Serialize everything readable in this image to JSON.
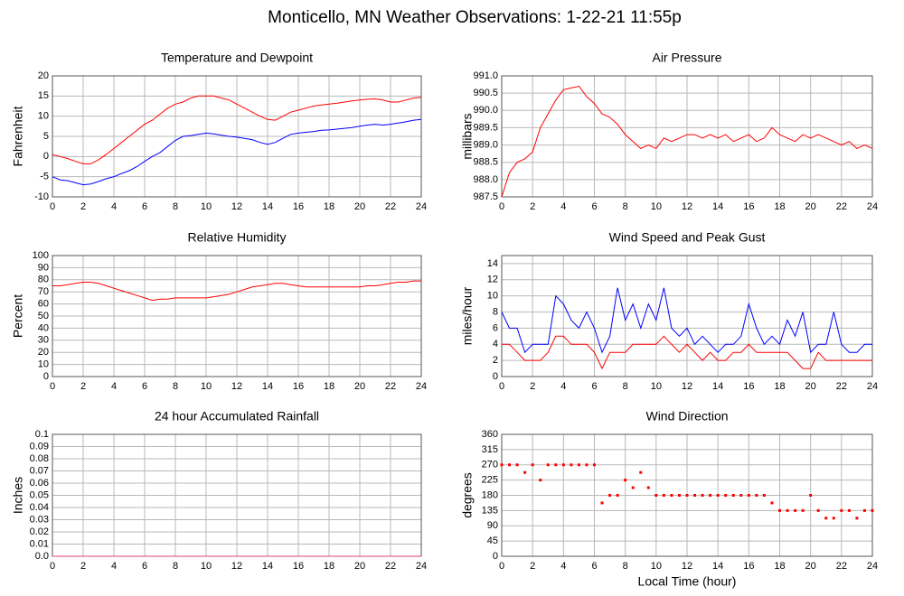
{
  "title": "Monticello, MN Weather Observations: 1-22-21 11:55p",
  "chart_data": [
    {
      "type": "line",
      "title": "Temperature and Dewpoint",
      "ylabel": "Fahrenheit",
      "x": [
        0,
        0.5,
        1,
        1.5,
        2,
        2.5,
        3,
        3.5,
        4,
        4.5,
        5,
        5.5,
        6,
        6.5,
        7,
        7.5,
        8,
        8.5,
        9,
        9.5,
        10,
        10.5,
        11,
        11.5,
        12,
        12.5,
        13,
        13.5,
        14,
        14.5,
        15,
        15.5,
        16,
        16.5,
        17,
        17.5,
        18,
        18.5,
        19,
        19.5,
        20,
        20.5,
        21,
        21.5,
        22,
        22.5,
        23,
        23.5,
        24
      ],
      "series": [
        {
          "color": "#ff0000",
          "values": [
            0.5,
            0,
            -0.5,
            -1.2,
            -1.8,
            -1.8,
            -0.8,
            0.5,
            2,
            3.5,
            5,
            6.5,
            8,
            9,
            10.5,
            12,
            13,
            13.5,
            14.5,
            15,
            15,
            15,
            14.5,
            14,
            13,
            12,
            11,
            10,
            9.2,
            9,
            10,
            11,
            11.5,
            12,
            12.5,
            12.8,
            13,
            13.2,
            13.5,
            13.8,
            14,
            14.2,
            14.3,
            14,
            13.5,
            13.5,
            14,
            14.5,
            14.7
          ]
        },
        {
          "color": "#0000ff",
          "values": [
            -5,
            -5.8,
            -6,
            -6.5,
            -7,
            -6.8,
            -6.2,
            -5.5,
            -5,
            -4.2,
            -3.5,
            -2.5,
            -1.2,
            0,
            1,
            2.5,
            4,
            5,
            5.2,
            5.5,
            5.8,
            5.6,
            5.3,
            5,
            4.8,
            4.5,
            4.2,
            3.5,
            3,
            3.5,
            4.5,
            5.5,
            5.8,
            6,
            6.2,
            6.5,
            6.6,
            6.8,
            7,
            7.2,
            7.5,
            7.8,
            8,
            7.8,
            8,
            8.3,
            8.6,
            9,
            9.2
          ]
        }
      ],
      "xlim": [
        0,
        24
      ],
      "xticks": [
        0,
        2,
        4,
        6,
        8,
        10,
        12,
        14,
        16,
        18,
        20,
        22,
        24
      ],
      "ylim": [
        -10,
        20
      ],
      "yticks": [
        -10,
        -5,
        0,
        5,
        10,
        15,
        20
      ],
      "grid": true
    },
    {
      "type": "line",
      "title": "Air Pressure",
      "ylabel": "millibars",
      "x": [
        0,
        0.5,
        1,
        1.5,
        2,
        2.5,
        3,
        3.5,
        4,
        4.5,
        5,
        5.5,
        6,
        6.5,
        7,
        7.5,
        8,
        8.5,
        9,
        9.5,
        10,
        10.5,
        11,
        11.5,
        12,
        12.5,
        13,
        13.5,
        14,
        14.5,
        15,
        15.5,
        16,
        16.5,
        17,
        17.5,
        18,
        18.5,
        19,
        19.5,
        20,
        20.5,
        21,
        21.5,
        22,
        22.5,
        23,
        23.5,
        24
      ],
      "series": [
        {
          "color": "#ff0000",
          "values": [
            987.5,
            988.2,
            988.5,
            988.6,
            988.8,
            989.5,
            989.9,
            990.3,
            990.6,
            990.65,
            990.7,
            990.4,
            990.2,
            989.9,
            989.8,
            989.6,
            989.3,
            989.1,
            988.9,
            989.0,
            988.9,
            989.2,
            989.1,
            989.2,
            989.3,
            989.3,
            989.2,
            989.3,
            989.2,
            989.3,
            989.1,
            989.2,
            989.3,
            989.1,
            989.2,
            989.5,
            989.3,
            989.2,
            989.1,
            989.3,
            989.2,
            989.3,
            989.2,
            989.1,
            989.0,
            989.1,
            988.9,
            989.0,
            988.9
          ]
        }
      ],
      "xlim": [
        0,
        24
      ],
      "xticks": [
        0,
        2,
        4,
        6,
        8,
        10,
        12,
        14,
        16,
        18,
        20,
        22,
        24
      ],
      "ylim": [
        987.5,
        991
      ],
      "yticks": [
        987.5,
        {
          "value": 988,
          "label": "988.0"
        },
        988.5,
        {
          "value": 989,
          "label": "989.0"
        },
        989.5,
        {
          "value": 990,
          "label": "990.0"
        },
        990.5,
        {
          "value": 991,
          "label": "991.0"
        }
      ],
      "grid": true
    },
    {
      "type": "line",
      "title": "Relative Humidity",
      "ylabel": "Percent",
      "x": [
        0,
        0.5,
        1,
        1.5,
        2,
        2.5,
        3,
        3.5,
        4,
        4.5,
        5,
        5.5,
        6,
        6.5,
        7,
        7.5,
        8,
        8.5,
        9,
        9.5,
        10,
        10.5,
        11,
        11.5,
        12,
        12.5,
        13,
        13.5,
        14,
        14.5,
        15,
        15.5,
        16,
        16.5,
        17,
        17.5,
        18,
        18.5,
        19,
        19.5,
        20,
        20.5,
        21,
        21.5,
        22,
        22.5,
        23,
        23.5,
        24
      ],
      "series": [
        {
          "color": "#ff0000",
          "values": [
            75,
            75,
            76,
            77,
            78,
            78,
            77,
            75,
            73,
            71,
            69,
            67,
            65,
            63,
            64,
            64,
            65,
            65,
            65,
            65,
            65,
            66,
            67,
            68,
            70,
            72,
            74,
            75,
            76,
            77,
            77,
            76,
            75,
            74,
            74,
            74,
            74,
            74,
            74,
            74,
            74,
            75,
            75,
            76,
            77,
            78,
            78,
            79,
            79
          ]
        }
      ],
      "xlim": [
        0,
        24
      ],
      "xticks": [
        0,
        2,
        4,
        6,
        8,
        10,
        12,
        14,
        16,
        18,
        20,
        22,
        24
      ],
      "ylim": [
        0,
        100
      ],
      "yticks": [
        0,
        10,
        20,
        30,
        40,
        50,
        60,
        70,
        80,
        90,
        100
      ],
      "grid": true
    },
    {
      "type": "line",
      "title": "Wind Speed and Peak Gust",
      "ylabel": "miles/hour",
      "x": [
        0,
        0.5,
        1,
        1.5,
        2,
        2.5,
        3,
        3.5,
        4,
        4.5,
        5,
        5.5,
        6,
        6.5,
        7,
        7.5,
        8,
        8.5,
        9,
        9.5,
        10,
        10.5,
        11,
        11.5,
        12,
        12.5,
        13,
        13.5,
        14,
        14.5,
        15,
        15.5,
        16,
        16.5,
        17,
        17.5,
        18,
        18.5,
        19,
        19.5,
        20,
        20.5,
        21,
        21.5,
        22,
        22.5,
        23,
        23.5,
        24
      ],
      "series": [
        {
          "color": "#0000ff",
          "values": [
            8,
            6,
            6,
            3,
            4,
            4,
            4,
            10,
            9,
            7,
            6,
            8,
            6,
            3,
            5,
            11,
            7,
            9,
            6,
            9,
            7,
            11,
            6,
            5,
            6,
            4,
            5,
            4,
            3,
            4,
            4,
            5,
            9,
            6,
            4,
            5,
            4,
            7,
            5,
            8,
            3,
            4,
            4,
            8,
            4,
            3,
            3,
            4,
            4
          ]
        },
        {
          "color": "#ff0000",
          "values": [
            4,
            4,
            3,
            2,
            2,
            2,
            3,
            5,
            5,
            4,
            4,
            4,
            3,
            1,
            3,
            3,
            3,
            4,
            4,
            4,
            4,
            5,
            4,
            3,
            4,
            3,
            2,
            3,
            2,
            2,
            3,
            3,
            4,
            3,
            3,
            3,
            3,
            3,
            2,
            1,
            1,
            3,
            2,
            2,
            2,
            2,
            2,
            2,
            2
          ]
        }
      ],
      "xlim": [
        0,
        24
      ],
      "xticks": [
        0,
        2,
        4,
        6,
        8,
        10,
        12,
        14,
        16,
        18,
        20,
        22,
        24
      ],
      "ylim": [
        0,
        15
      ],
      "yticks": [
        0,
        2,
        4,
        6,
        8,
        10,
        12,
        14
      ],
      "grid": true
    },
    {
      "type": "line",
      "title": "24 hour Accumulated Rainfall",
      "ylabel": "Inches",
      "x": [
        0,
        24
      ],
      "series": [
        {
          "color": "#e0406a",
          "values": [
            0,
            0
          ]
        }
      ],
      "xlim": [
        0,
        24
      ],
      "xticks": [
        0,
        2,
        4,
        6,
        8,
        10,
        12,
        14,
        16,
        18,
        20,
        22,
        24
      ],
      "ylim": [
        0,
        0.1
      ],
      "yticks": [
        {
          "value": 0,
          "label": "0.0"
        },
        0.01,
        0.02,
        0.03,
        0.04,
        0.05,
        0.06,
        0.07,
        0.08,
        0.09,
        0.1
      ],
      "grid": true
    },
    {
      "type": "scatter",
      "title": "Wind Direction",
      "ylabel": "degrees",
      "xlabel": "Local Time (hour)",
      "x": [
        0,
        0.5,
        1,
        1.5,
        2,
        2.5,
        3,
        3.5,
        4,
        4.5,
        5,
        5.5,
        6,
        6.5,
        7,
        7.5,
        8,
        8.5,
        9,
        9.5,
        10,
        10.5,
        11,
        11.5,
        12,
        12.5,
        13,
        13.5,
        14,
        14.5,
        15,
        15.5,
        16,
        16.5,
        17,
        17.5,
        18,
        18.5,
        19,
        19.5,
        20,
        20.5,
        21,
        21.5,
        22,
        22.5,
        23,
        23.5,
        24
      ],
      "series": [
        {
          "color": "#ff0000",
          "values": [
            270,
            270,
            270,
            247.5,
            270,
            225,
            270,
            270,
            270,
            270,
            270,
            270,
            270,
            157.5,
            180,
            180,
            225,
            202.5,
            247.5,
            202.5,
            180,
            180,
            180,
            180,
            180,
            180,
            180,
            180,
            180,
            180,
            180,
            180,
            180,
            180,
            180,
            157.5,
            135,
            135,
            135,
            135,
            180,
            135,
            112.5,
            112.5,
            135,
            135,
            112.5,
            135,
            135
          ]
        }
      ],
      "xlim": [
        0,
        24
      ],
      "xticks": [
        0,
        2,
        4,
        6,
        8,
        10,
        12,
        14,
        16,
        18,
        20,
        22,
        24
      ],
      "ylim": [
        0,
        360
      ],
      "yticks": [
        0,
        45,
        90,
        135,
        180,
        225,
        270,
        315,
        360
      ],
      "grid": true
    }
  ]
}
